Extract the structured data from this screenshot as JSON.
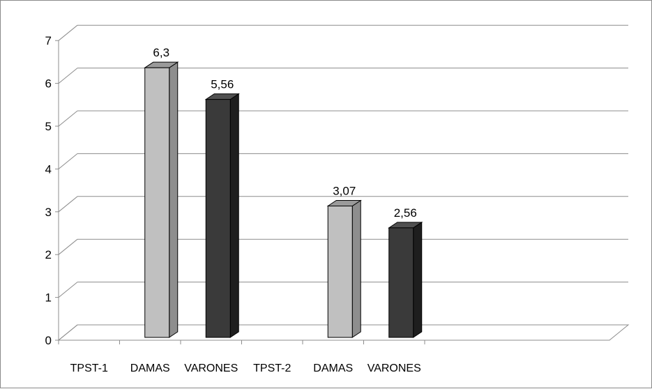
{
  "chart_data": {
    "type": "bar",
    "categories": [
      "TPST-1",
      "DAMAS",
      "VARONES",
      "TPST-2",
      "DAMAS",
      "VARONES"
    ],
    "values": [
      null,
      6.3,
      5.56,
      null,
      3.07,
      2.56
    ],
    "data_labels": [
      "",
      "6,3",
      "5,56",
      "",
      "3,07",
      "2,56"
    ],
    "bar_colors": [
      "",
      "#c0c0c0",
      "#3a3a3a",
      "",
      "#c0c0c0",
      "#3a3a3a"
    ],
    "bar_style": "3d-column",
    "ylim": [
      0,
      7
    ],
    "y_ticks": [
      "0",
      "1",
      "2",
      "3",
      "4",
      "5",
      "6",
      "7"
    ],
    "grid": true,
    "legend": "none",
    "title": "",
    "xlabel": "",
    "ylabel": ""
  }
}
